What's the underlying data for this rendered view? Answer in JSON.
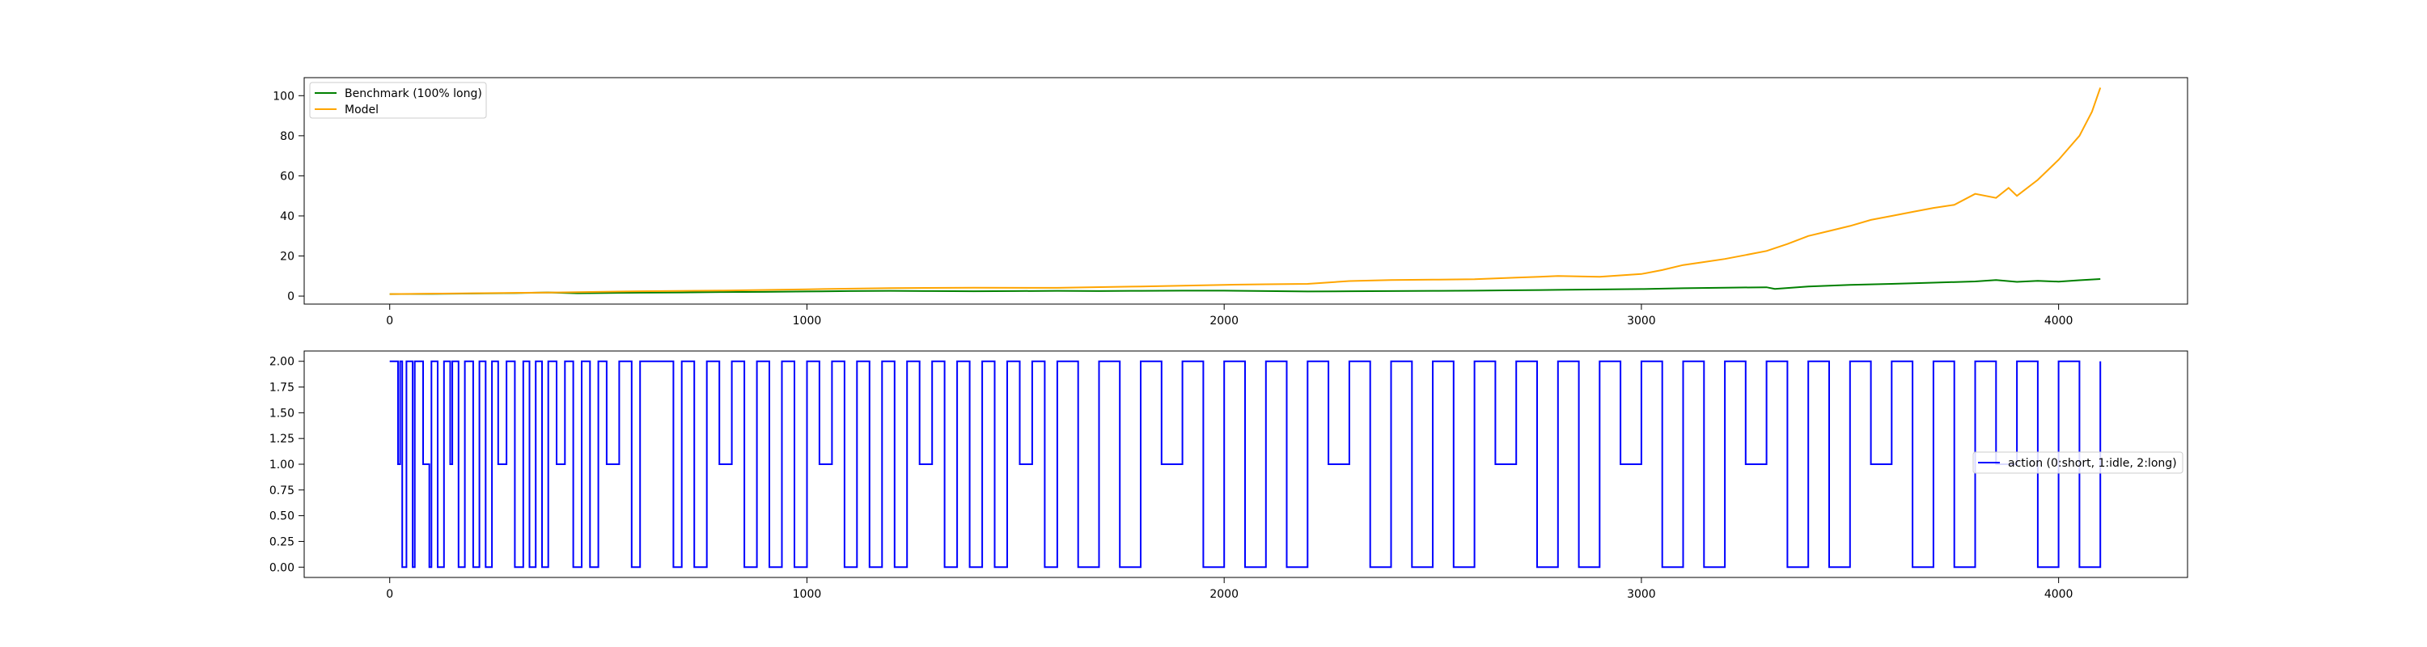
{
  "colors": {
    "benchmark": "#008000",
    "model": "#FFA500",
    "action": "#0000FF",
    "axes": "#000000",
    "legend_border": "#cccccc"
  },
  "chart_data": [
    {
      "type": "line",
      "title": "",
      "xlabel": "",
      "ylabel": "",
      "xlim": [
        -205,
        4309
      ],
      "ylim": [
        -4,
        109
      ],
      "x_ticks": [
        0,
        1000,
        2000,
        3000,
        4000
      ],
      "y_ticks": [
        0,
        20,
        40,
        60,
        80,
        100
      ],
      "x_tick_labels": [
        "0",
        "1000",
        "2000",
        "3000",
        "4000"
      ],
      "y_tick_labels": [
        "0",
        "20",
        "40",
        "60",
        "80",
        "100"
      ],
      "grid": false,
      "legend_position": "upper left",
      "series": [
        {
          "name": "Benchmark (100% long)",
          "color": "#008000",
          "x": [
            0,
            100,
            200,
            300,
            380,
            450,
            500,
            600,
            700,
            800,
            900,
            1000,
            1100,
            1200,
            1300,
            1400,
            1500,
            1600,
            1700,
            1800,
            1900,
            2000,
            2100,
            2200,
            2300,
            2400,
            2500,
            2600,
            2700,
            2800,
            2900,
            3000,
            3100,
            3200,
            3300,
            3320,
            3400,
            3500,
            3600,
            3700,
            3800,
            3850,
            3900,
            3950,
            4000,
            4050,
            4100
          ],
          "y": [
            1.0,
            1.1,
            1.3,
            1.5,
            1.8,
            1.4,
            1.5,
            1.7,
            1.8,
            2.0,
            2.1,
            2.3,
            2.5,
            2.6,
            2.5,
            2.4,
            2.5,
            2.6,
            2.5,
            2.6,
            2.7,
            2.7,
            2.5,
            2.3,
            2.4,
            2.5,
            2.6,
            2.7,
            2.9,
            3.1,
            3.3,
            3.5,
            3.9,
            4.2,
            4.4,
            3.6,
            4.8,
            5.6,
            6.1,
            6.7,
            7.3,
            8.0,
            7.1,
            7.6,
            7.2,
            7.9,
            8.5
          ]
        },
        {
          "name": "Model",
          "color": "#FFA500",
          "x": [
            0,
            200,
            400,
            600,
            800,
            1000,
            1200,
            1400,
            1600,
            1800,
            2000,
            2100,
            2200,
            2300,
            2400,
            2500,
            2600,
            2700,
            2800,
            2900,
            3000,
            3050,
            3100,
            3150,
            3200,
            3250,
            3300,
            3350,
            3400,
            3450,
            3500,
            3550,
            3600,
            3650,
            3700,
            3750,
            3800,
            3850,
            3880,
            3900,
            3950,
            4000,
            4050,
            4080,
            4100
          ],
          "y": [
            1.0,
            1.4,
            1.8,
            2.4,
            2.8,
            3.4,
            4.0,
            4.2,
            4.1,
            4.8,
            5.6,
            5.9,
            6.1,
            7.5,
            8.0,
            8.2,
            8.4,
            9.2,
            10.0,
            9.6,
            11.0,
            13.0,
            15.5,
            17.0,
            18.5,
            20.5,
            22.5,
            26.0,
            30.0,
            32.5,
            35.0,
            38.0,
            40.0,
            42.0,
            44.0,
            45.5,
            51.0,
            49.0,
            54.0,
            50.0,
            58.0,
            68.0,
            80.0,
            92.0,
            104.0
          ]
        }
      ]
    },
    {
      "type": "line",
      "title": "",
      "xlabel": "",
      "ylabel": "",
      "xlim": [
        -205,
        4309
      ],
      "ylim": [
        -0.1,
        2.1
      ],
      "x_ticks": [
        0,
        1000,
        2000,
        3000,
        4000
      ],
      "y_ticks": [
        0.0,
        0.25,
        0.5,
        0.75,
        1.0,
        1.25,
        1.5,
        1.75,
        2.0
      ],
      "x_tick_labels": [
        "0",
        "1000",
        "2000",
        "3000",
        "4000"
      ],
      "y_tick_labels": [
        "0.00",
        "0.25",
        "0.50",
        "0.75",
        "1.00",
        "1.25",
        "1.50",
        "1.75",
        "2.00"
      ],
      "grid": false,
      "legend_position": "center right",
      "series": [
        {
          "name": "action (0:short, 1:idle, 2:long)",
          "color": "#0000FF",
          "x_start": 0,
          "x_end": 4100,
          "x": [
            0,
            20,
            25,
            30,
            40,
            55,
            60,
            80,
            95,
            100,
            115,
            130,
            145,
            150,
            165,
            180,
            200,
            215,
            230,
            245,
            260,
            280,
            300,
            320,
            335,
            350,
            365,
            380,
            400,
            420,
            440,
            460,
            480,
            500,
            520,
            550,
            580,
            600,
            640,
            680,
            700,
            730,
            760,
            790,
            820,
            850,
            880,
            910,
            940,
            970,
            1000,
            1030,
            1060,
            1090,
            1120,
            1150,
            1180,
            1210,
            1240,
            1270,
            1300,
            1330,
            1360,
            1390,
            1420,
            1450,
            1480,
            1510,
            1540,
            1570,
            1600,
            1650,
            1700,
            1750,
            1800,
            1850,
            1900,
            1950,
            2000,
            2050,
            2100,
            2150,
            2200,
            2250,
            2300,
            2350,
            2400,
            2450,
            2500,
            2550,
            2600,
            2650,
            2700,
            2750,
            2800,
            2850,
            2900,
            2950,
            3000,
            3050,
            3100,
            3150,
            3200,
            3250,
            3300,
            3350,
            3400,
            3450,
            3500,
            3550,
            3600,
            3650,
            3700,
            3750,
            3800,
            3850,
            3900,
            3950,
            4000,
            4050,
            4100
          ],
          "y": [
            2,
            1,
            2,
            0,
            2,
            0,
            2,
            1,
            0,
            2,
            0,
            2,
            1,
            2,
            0,
            2,
            0,
            2,
            0,
            2,
            1,
            2,
            0,
            2,
            0,
            2,
            0,
            2,
            1,
            2,
            0,
            2,
            0,
            2,
            1,
            2,
            0,
            2,
            2,
            0,
            2,
            0,
            2,
            1,
            2,
            0,
            2,
            0,
            2,
            0,
            2,
            1,
            2,
            0,
            2,
            0,
            2,
            0,
            2,
            1,
            2,
            0,
            2,
            0,
            2,
            0,
            2,
            1,
            2,
            0,
            2,
            0,
            2,
            0,
            2,
            1,
            2,
            0,
            2,
            0,
            2,
            0,
            2,
            1,
            2,
            0,
            2,
            0,
            2,
            0,
            2,
            1,
            2,
            0,
            2,
            0,
            2,
            1,
            2,
            0,
            2,
            0,
            2,
            1,
            2,
            0,
            2,
            0,
            2,
            1,
            2,
            0,
            2,
            0,
            2,
            1,
            2,
            0,
            2,
            0,
            2
          ]
        }
      ]
    }
  ]
}
